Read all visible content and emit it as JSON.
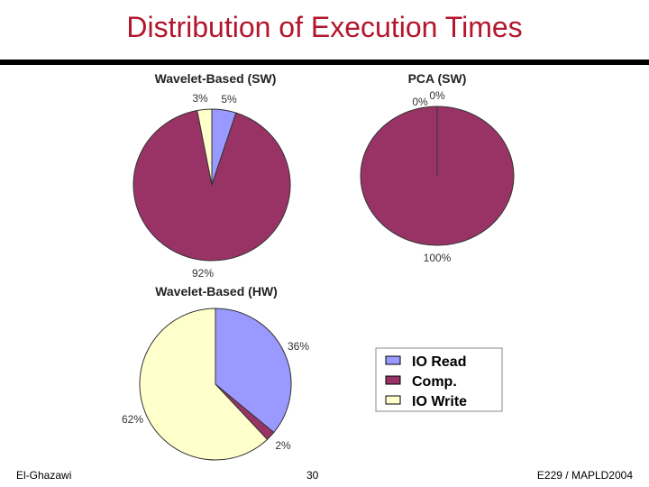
{
  "slide": {
    "title": "Distribution of Execution Times",
    "footer_left": "El-Ghazawi",
    "footer_center": "30",
    "footer_right": "E229 / MAPLD2004"
  },
  "colors": {
    "io_read": "#9999ff",
    "comp": "#993366",
    "io_write": "#ffffcc",
    "title": "#b3162d"
  },
  "legend": {
    "items": [
      {
        "label": "IO Read",
        "color": "#9999ff"
      },
      {
        "label": "Comp.",
        "color": "#993366"
      },
      {
        "label": "IO Write",
        "color": "#ffffcc"
      }
    ]
  },
  "chart_data": [
    {
      "type": "pie",
      "title": "Wavelet-Based (SW)",
      "categories": [
        "IO Read",
        "Comp.",
        "IO Write"
      ],
      "values": [
        5,
        92,
        3
      ],
      "labels": [
        "5%",
        "92%",
        "3%"
      ]
    },
    {
      "type": "pie",
      "title": "PCA (SW)",
      "categories": [
        "IO Read",
        "Comp.",
        "IO Write"
      ],
      "values": [
        0,
        100,
        0
      ],
      "labels": [
        "0%",
        "100%",
        "0%"
      ]
    },
    {
      "type": "pie",
      "title": "Wavelet-Based (HW)",
      "categories": [
        "IO Read",
        "Comp.",
        "IO Write"
      ],
      "values": [
        36,
        2,
        62
      ],
      "labels": [
        "36%",
        "2%",
        "62%"
      ]
    }
  ]
}
